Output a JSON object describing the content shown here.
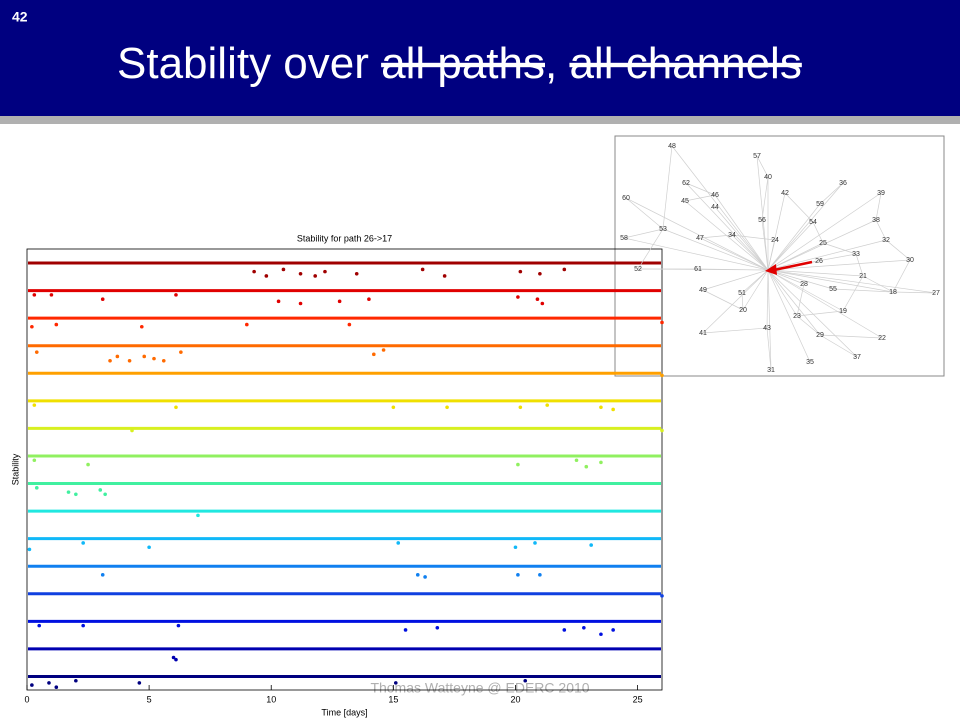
{
  "slide_number": "42",
  "title_parts": [
    {
      "text": "Stability over ",
      "struck": false
    },
    {
      "text": "all paths",
      "struck": true
    },
    {
      "text": ", ",
      "struck": false
    },
    {
      "text": "all channels",
      "struck": true
    }
  ],
  "footer": "Thomas Watteyne @ EDERC 2010",
  "chart_data": {
    "type": "stripes",
    "title": "Stability for path 26->17",
    "xlabel": "Time [days]",
    "ylabel": "Stability",
    "xlim": [
      0,
      26
    ],
    "xticks": [
      0,
      5,
      10,
      15,
      20,
      25
    ],
    "ylim": [
      0,
      1
    ],
    "series": [
      {
        "color": "#a00000",
        "x": [
          9.3,
          9.8,
          10.5,
          11.2,
          11.8,
          12.2,
          13.5,
          16.2,
          17.1,
          20.2,
          21.0,
          22.0
        ],
        "values": [
          0.6,
          0.4,
          0.7,
          0.5,
          0.4,
          0.6,
          0.5,
          0.7,
          0.4,
          0.6,
          0.5,
          0.7
        ]
      },
      {
        "color": "#e00000",
        "x": [
          0.3,
          1.0,
          3.1,
          6.1,
          10.3,
          11.2,
          12.8,
          14.0,
          20.1,
          20.9,
          21.1
        ],
        "values": [
          0.8,
          0.8,
          0.6,
          0.8,
          0.5,
          0.4,
          0.5,
          0.6,
          0.7,
          0.6,
          0.4
        ]
      },
      {
        "color": "#ff2800",
        "x": [
          0.2,
          1.2,
          4.7,
          9.0,
          13.2,
          26.0
        ],
        "values": [
          0.6,
          0.7,
          0.6,
          0.7,
          0.7,
          0.8
        ]
      },
      {
        "color": "#ff6a00",
        "x": [
          0.4,
          3.4,
          3.7,
          4.2,
          4.8,
          5.2,
          5.6,
          6.3,
          14.2,
          14.6
        ],
        "values": [
          0.7,
          0.3,
          0.5,
          0.3,
          0.5,
          0.4,
          0.3,
          0.7,
          0.6,
          0.8
        ]
      },
      {
        "color": "#ffa000",
        "x": [
          26.0
        ],
        "values": [
          0.9
        ]
      },
      {
        "color": "#f0e000",
        "x": [
          0.3,
          6.1,
          15.0,
          17.2,
          20.2,
          21.3,
          23.5,
          24.0
        ],
        "values": [
          0.8,
          0.7,
          0.7,
          0.7,
          0.7,
          0.8,
          0.7,
          0.6
        ]
      },
      {
        "color": "#d8f020",
        "x": [
          4.3,
          26.0
        ],
        "values": [
          0.9,
          0.9
        ]
      },
      {
        "color": "#90f060",
        "x": [
          0.3,
          2.5,
          20.1,
          22.5,
          22.9,
          23.5
        ],
        "values": [
          0.8,
          0.6,
          0.6,
          0.8,
          0.5,
          0.7
        ]
      },
      {
        "color": "#40f0a0",
        "x": [
          0.4,
          1.7,
          2.0,
          3.0,
          3.2
        ],
        "values": [
          0.8,
          0.6,
          0.5,
          0.7,
          0.5
        ]
      },
      {
        "color": "#20e8e0",
        "x": [
          7.0
        ],
        "values": [
          0.8
        ]
      },
      {
        "color": "#10b8f8",
        "x": [
          0.1,
          2.3,
          5.0,
          15.2,
          20.0,
          20.8,
          23.1
        ],
        "values": [
          0.5,
          0.8,
          0.6,
          0.8,
          0.6,
          0.8,
          0.7
        ]
      },
      {
        "color": "#1080f0",
        "x": [
          3.1,
          16.0,
          16.3,
          20.1,
          21.0
        ],
        "values": [
          0.6,
          0.6,
          0.5,
          0.6,
          0.6
        ]
      },
      {
        "color": "#1040e0",
        "x": [
          26.0
        ],
        "values": [
          0.9
        ]
      },
      {
        "color": "#0010e0",
        "x": [
          0.5,
          2.3,
          6.2,
          15.5,
          16.8,
          22.0,
          22.8,
          23.5,
          24.0
        ],
        "values": [
          0.8,
          0.8,
          0.8,
          0.6,
          0.7,
          0.6,
          0.7,
          0.4,
          0.6
        ]
      },
      {
        "color": "#0000b0",
        "x": [
          6.0,
          6.1
        ],
        "values": [
          0.6,
          0.5
        ]
      },
      {
        "color": "#000080",
        "x": [
          0.2,
          0.9,
          1.2,
          2.0,
          4.6,
          15.1,
          20.4
        ],
        "values": [
          0.6,
          0.7,
          0.5,
          0.8,
          0.7,
          0.7,
          0.8
        ]
      }
    ]
  },
  "network": {
    "nodes": [
      "48",
      "57",
      "40",
      "62",
      "46",
      "42",
      "36",
      "39",
      "60",
      "45",
      "44",
      "59",
      "54",
      "56",
      "38",
      "53",
      "34",
      "47",
      "24",
      "25",
      "32",
      "58",
      "33",
      "26",
      "30",
      "61",
      "52",
      "21",
      "28",
      "55",
      "18",
      "27",
      "49",
      "51",
      "20",
      "19",
      "23",
      "43",
      "41",
      "29",
      "22",
      "37",
      "35",
      "31"
    ]
  }
}
